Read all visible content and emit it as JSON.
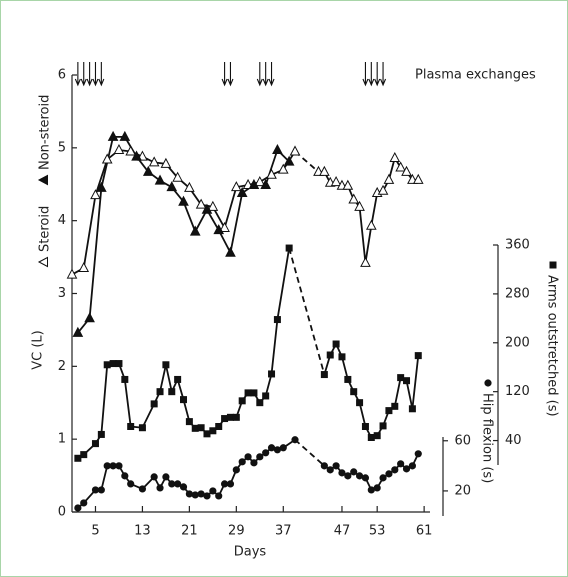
{
  "chart_data": {
    "type": "line",
    "xlabel": "Days",
    "ylabel": "VC (L)",
    "xlim": [
      1,
      62
    ],
    "xticks": [
      5,
      13,
      21,
      29,
      37,
      47,
      53,
      61
    ],
    "ylim": [
      0,
      6
    ],
    "yticks": [
      0,
      1,
      2,
      3,
      4,
      5,
      6
    ],
    "y2lim": [
      0,
      360
    ],
    "y2ticks": [
      40,
      120,
      200,
      280,
      360
    ],
    "y3lim": [
      0,
      63
    ],
    "y3ticks": [
      20,
      60
    ],
    "plasma_exchanges": {
      "label": "Plasma exchanges",
      "days": [
        2,
        3,
        4,
        5,
        6,
        27,
        28,
        33,
        34,
        35,
        51,
        52,
        53,
        54
      ]
    },
    "series": [
      {
        "name": "Steroid",
        "marker": "open-triangle",
        "color": "#111",
        "x": [
          1,
          3,
          5,
          7,
          9,
          11,
          13,
          15,
          17,
          19,
          21,
          23,
          25,
          27,
          29,
          31,
          33,
          35,
          37,
          39,
          41,
          43,
          44,
          45,
          46,
          47,
          48,
          49,
          50,
          51,
          52,
          53,
          54,
          55,
          56,
          57,
          58,
          59,
          60
        ],
        "values": [
          3.26,
          3.35,
          4.35,
          4.84,
          4.97,
          4.95,
          4.88,
          4.8,
          4.78,
          4.59,
          4.45,
          4.22,
          4.19,
          3.9,
          4.46,
          4.49,
          4.53,
          4.63,
          4.7,
          4.95,
          null,
          4.67,
          4.67,
          4.52,
          4.53,
          4.48,
          4.48,
          4.29,
          4.19,
          3.42,
          3.93,
          4.38,
          4.41,
          4.56,
          4.86,
          4.73,
          4.67,
          4.56,
          4.56
        ]
      },
      {
        "name": "Non-steroid",
        "marker": "filled-triangle",
        "color": "#111",
        "x": [
          2,
          4,
          6,
          8,
          10,
          12,
          14,
          16,
          18,
          20,
          22,
          24,
          26,
          28,
          30,
          32,
          34,
          36,
          38
        ],
        "values": [
          2.46,
          2.66,
          4.45,
          5.15,
          5.15,
          4.88,
          4.67,
          4.55,
          4.46,
          4.26,
          3.85,
          4.15,
          3.87,
          3.56,
          4.38,
          4.49,
          4.49,
          4.97,
          4.81
        ]
      },
      {
        "name": "Arms outstretched (s)",
        "marker": "square",
        "color": "#111",
        "axis": "y2",
        "x": [
          2,
          3,
          5,
          6,
          7,
          8,
          9,
          10,
          11,
          13,
          15,
          16,
          17,
          18,
          19,
          20,
          21,
          22,
          23,
          24,
          25,
          26,
          27,
          28,
          29,
          30,
          31,
          32,
          33,
          34,
          35,
          36,
          38,
          41,
          44,
          45,
          46,
          47,
          48,
          49,
          50,
          51,
          52,
          53,
          54,
          55,
          56,
          57,
          58,
          59,
          60
        ],
        "values": [
          11,
          17,
          35,
          50,
          164,
          166,
          166,
          140,
          63,
          61,
          100,
          120,
          164,
          120,
          140,
          107,
          71,
          60,
          61,
          51,
          56,
          63,
          76,
          78,
          78,
          105,
          118,
          118,
          102,
          113,
          149,
          238,
          355,
          null,
          148,
          180,
          198,
          177,
          140,
          120,
          102,
          63,
          45,
          48,
          64,
          89,
          96,
          143,
          138,
          92,
          179
        ]
      },
      {
        "name": "Hip flexion (s)",
        "marker": "circle",
        "color": "#111",
        "axis": "y3",
        "x": [
          2,
          3,
          5,
          6,
          7,
          8,
          9,
          10,
          11,
          13,
          15,
          16,
          17,
          18,
          19,
          20,
          21,
          22,
          23,
          24,
          25,
          26,
          27,
          28,
          29,
          30,
          31,
          32,
          33,
          34,
          35,
          36,
          37,
          39,
          41,
          44,
          45,
          46,
          47,
          48,
          49,
          50,
          51,
          52,
          53,
          54,
          55,
          56,
          57,
          58,
          59,
          60
        ],
        "values": [
          6.4,
          10.4,
          20.8,
          20.8,
          40,
          40,
          40,
          32,
          25.6,
          21.6,
          31.2,
          22.4,
          31.2,
          25.6,
          25.6,
          23.2,
          17.6,
          16.8,
          17.6,
          16,
          20,
          16,
          25.6,
          25.6,
          36.8,
          43.2,
          47.2,
          42.4,
          47.2,
          50.4,
          54.4,
          52.8,
          54.4,
          60.8,
          null,
          40,
          36.8,
          40,
          34.4,
          32,
          35.2,
          32,
          30.4,
          20.8,
          22.4,
          30.4,
          33.6,
          36.8,
          41.6,
          37.6,
          40,
          49.6
        ]
      }
    ]
  }
}
